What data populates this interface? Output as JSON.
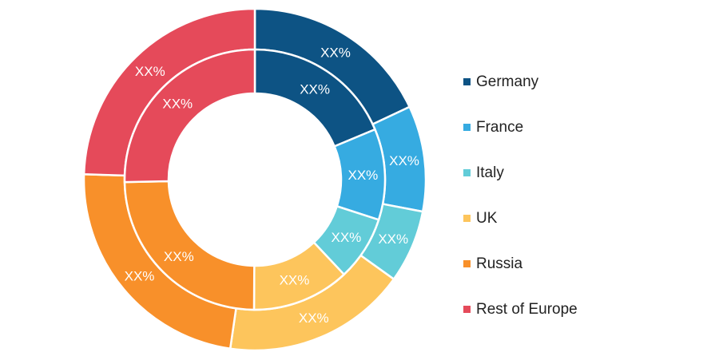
{
  "chart_data": {
    "type": "pie",
    "variant": "nested-donut",
    "categories": [
      "Germany",
      "France",
      "Italy",
      "UK",
      "Russia",
      "Rest of Europe"
    ],
    "colors": [
      "#0d5384",
      "#36abe1",
      "#62ccd8",
      "#fdc55c",
      "#f8902a",
      "#e54a5a"
    ],
    "series": [
      {
        "values": [
          18.0,
          10.0,
          6.9,
          17.4,
          23.2,
          24.5
        ],
        "labels": [
          "XX%",
          "XX%",
          "XX%",
          "XX%",
          "XX%",
          "XX%"
        ]
      },
      {
        "values": [
          18.7,
          11.3,
          8.0,
          12.1,
          24.6,
          25.3
        ],
        "labels": [
          "XX%",
          "XX%",
          "XX%",
          "XX%",
          "XX%",
          "XX%"
        ]
      }
    ],
    "legend_position": "right",
    "title": "",
    "background": "#ffffff",
    "separator_color": "#ffffff"
  }
}
